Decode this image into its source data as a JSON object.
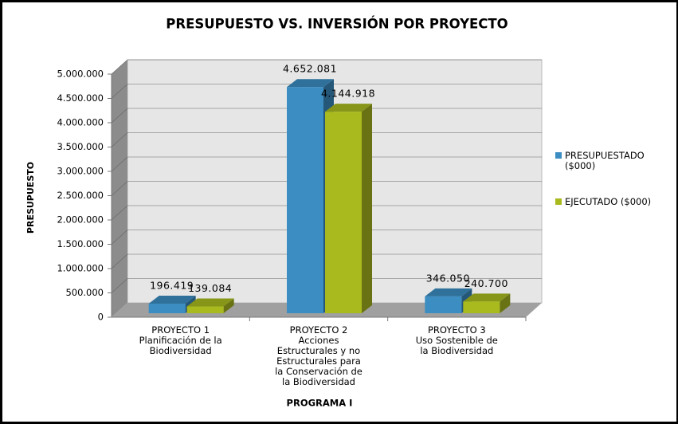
{
  "chart_data": {
    "type": "bar3d",
    "title": "PRESUPUESTO VS. INVERSIÓN POR PROYECTO",
    "y_label": "PRESUPUESTO",
    "x_label": "PROGRAMA I",
    "categories": [
      "PROYECTO 1\nPlanificación de la\nBiodiversidad",
      "PROYECTO 2\nAcciones\nEstructurales y no\nEstructurales para\nla Conservación de\nla Biodiversidad",
      "PROYECTO 3\nUso Sostenible de\nla Biodiversidad"
    ],
    "series": [
      {
        "name": "PRESUPUESTADO ($000)",
        "color": "#3b8dc2",
        "values": [
          196419,
          4652081,
          346050
        ],
        "value_labels": [
          "196.419",
          "4.652.081",
          "346.050"
        ]
      },
      {
        "name": "EJECUTADO ($000)",
        "color": "#a9ba1e",
        "values": [
          139084,
          4144918,
          240700
        ],
        "value_labels": [
          "139.084",
          "4.144.918",
          "240.700"
        ]
      }
    ],
    "ylim": [
      0,
      5000000
    ],
    "yticks": [
      0,
      {
        "value": 500000,
        "label": "500.000"
      },
      {
        "value": 1000000,
        "label": "1.000.000"
      },
      {
        "value": 1500000,
        "label": "1.500.000"
      },
      {
        "value": 2000000,
        "label": "2.000.000"
      },
      {
        "value": 2500000,
        "label": "2.500.000"
      },
      {
        "value": 3000000,
        "label": "3.000.000"
      },
      {
        "value": 3500000,
        "label": "3.500.000"
      },
      {
        "value": 4000000,
        "label": "4.000.000"
      },
      {
        "value": 4500000,
        "label": "4.500.000"
      },
      {
        "value": 5000000,
        "label": "5.000.000"
      }
    ],
    "grid": true,
    "legend": "right"
  }
}
